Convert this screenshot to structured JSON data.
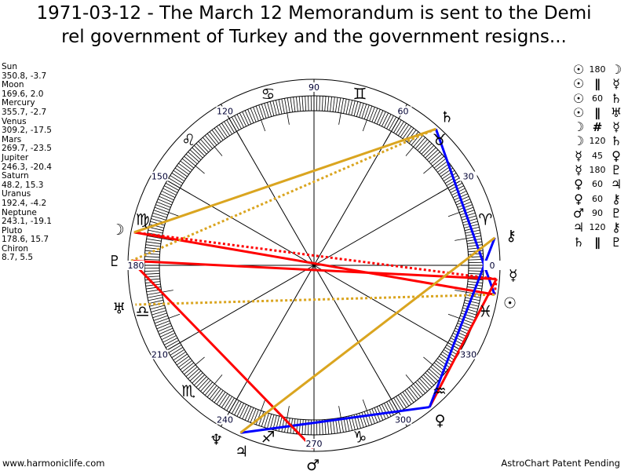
{
  "title": {
    "line1": "1971-03-12 - The March 12 Memorandum is sent to the Demi",
    "line2": "rel government of Turkey and the government resigns..."
  },
  "planets": [
    {
      "name": "Sun",
      "glyph": "☉",
      "position": "350.8, -3.7",
      "longitude": 350.8
    },
    {
      "name": "Moon",
      "glyph": "☽",
      "position": "169.6, 2.0",
      "longitude": 169.6
    },
    {
      "name": "Mercury",
      "glyph": "☿",
      "position": "355.7, -2.7",
      "longitude": 355.7
    },
    {
      "name": "Venus",
      "glyph": "♀",
      "position": "309.2, -17.5",
      "longitude": 309.2
    },
    {
      "name": "Mars",
      "glyph": "♂",
      "position": "269.7, -23.5",
      "longitude": 269.7
    },
    {
      "name": "Jupiter",
      "glyph": "♃",
      "position": "246.3, -20.4",
      "longitude": 246.3
    },
    {
      "name": "Saturn",
      "glyph": "♄",
      "position": "48.2, 15.3",
      "longitude": 48.2
    },
    {
      "name": "Uranus",
      "glyph": "♅",
      "position": "192.4, -4.2",
      "longitude": 192.4
    },
    {
      "name": "Neptune",
      "glyph": "♆",
      "position": "243.1, -19.1",
      "longitude": 243.1
    },
    {
      "name": "Pluto",
      "glyph": "♇",
      "position": "178.6, 15.7",
      "longitude": 178.6
    },
    {
      "name": "Chiron",
      "glyph": "⚷",
      "position": "8.7, 5.5",
      "longitude": 8.7
    }
  ],
  "aspects": [
    {
      "g1": "☉",
      "aspect": "180",
      "g2": "☽",
      "from": 0,
      "to": 1,
      "color": "#ff0000",
      "dotted": false
    },
    {
      "g1": "☉",
      "aspect": "∥",
      "g2": "☿",
      "from": 0,
      "to": 2,
      "color": "#ff0000",
      "dotted": true
    },
    {
      "g1": "☉",
      "aspect": "60",
      "g2": "♄",
      "from": 0,
      "to": 6,
      "color": "#0000ff",
      "dotted": false
    },
    {
      "g1": "☉",
      "aspect": "∥",
      "g2": "♅",
      "from": 0,
      "to": 7,
      "color": "#daa520",
      "dotted": true
    },
    {
      "g1": "☽",
      "aspect": "#",
      "g2": "☿",
      "from": 1,
      "to": 2,
      "color": "#ff0000",
      "dotted": true
    },
    {
      "g1": "☽",
      "aspect": "120",
      "g2": "♄",
      "from": 1,
      "to": 6,
      "color": "#daa520",
      "dotted": false
    },
    {
      "g1": "☿",
      "aspect": "45",
      "g2": "♀",
      "from": 2,
      "to": 3,
      "color": "#ff0000",
      "dotted": false
    },
    {
      "g1": "☿",
      "aspect": "180",
      "g2": "♇",
      "from": 2,
      "to": 9,
      "color": "#ff0000",
      "dotted": false
    },
    {
      "g1": "♀",
      "aspect": "60",
      "g2": "♃",
      "from": 3,
      "to": 5,
      "color": "#0000ff",
      "dotted": false
    },
    {
      "g1": "♀",
      "aspect": "60",
      "g2": "⚷",
      "from": 3,
      "to": 10,
      "color": "#0000ff",
      "dotted": false
    },
    {
      "g1": "♂",
      "aspect": "90",
      "g2": "♇",
      "from": 4,
      "to": 9,
      "color": "#ff0000",
      "dotted": false
    },
    {
      "g1": "♃",
      "aspect": "120",
      "g2": "⚷",
      "from": 5,
      "to": 10,
      "color": "#daa520",
      "dotted": false
    },
    {
      "g1": "♄",
      "aspect": "∥",
      "g2": "♇",
      "from": 6,
      "to": 9,
      "color": "#daa520",
      "dotted": true
    }
  ],
  "signs": [
    "♈",
    "♉",
    "♊",
    "♋",
    "♌",
    "♍",
    "♎",
    "♏",
    "♐",
    "♑",
    "♒",
    "♓"
  ],
  "degree_labels": [
    "0",
    "30",
    "60",
    "90",
    "120",
    "150",
    "180",
    "210",
    "240",
    "270",
    "300",
    "330"
  ],
  "footer": {
    "left": "www.harmoniclife.com",
    "right": "AstroChart Patent Pending"
  }
}
